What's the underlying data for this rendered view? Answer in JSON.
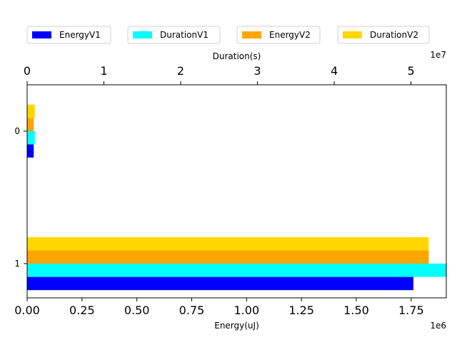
{
  "chart_data": {
    "type": "bar",
    "orientation": "horizontal",
    "categories": [
      "0",
      "1"
    ],
    "x_bottom": {
      "label": "Energy(uJ)",
      "offset_label": "1e6",
      "ticks": [
        0.0,
        0.25,
        0.5,
        0.75,
        1.0,
        1.25,
        1.5,
        1.75
      ],
      "tick_labels": [
        "0.00",
        "0.25",
        "0.50",
        "0.75",
        "1.00",
        "1.25",
        "1.50",
        "1.75"
      ],
      "lim": [
        0,
        1.91
      ]
    },
    "x_top": {
      "label": "Duration(s)",
      "offset_label": "1e7",
      "ticks": [
        0,
        1,
        2,
        3,
        4,
        5
      ],
      "tick_labels": [
        "0",
        "1",
        "2",
        "3",
        "4",
        "5"
      ],
      "lim": [
        0,
        5.46
      ]
    },
    "series": [
      {
        "name": "EnergyV1",
        "axis": "bottom",
        "color": "#0000ff",
        "values": [
          0.03,
          1.76
        ]
      },
      {
        "name": "DurationV1",
        "axis": "top",
        "color": "#00ffff",
        "values": [
          0.1,
          5.46
        ]
      },
      {
        "name": "EnergyV2",
        "axis": "bottom",
        "color": "#ffa500",
        "values": [
          0.03,
          1.83
        ]
      },
      {
        "name": "DurationV2",
        "axis": "top",
        "color": "#ffd700",
        "values": [
          0.1,
          5.23
        ]
      }
    ],
    "legend": "top, single row",
    "grid": false
  }
}
